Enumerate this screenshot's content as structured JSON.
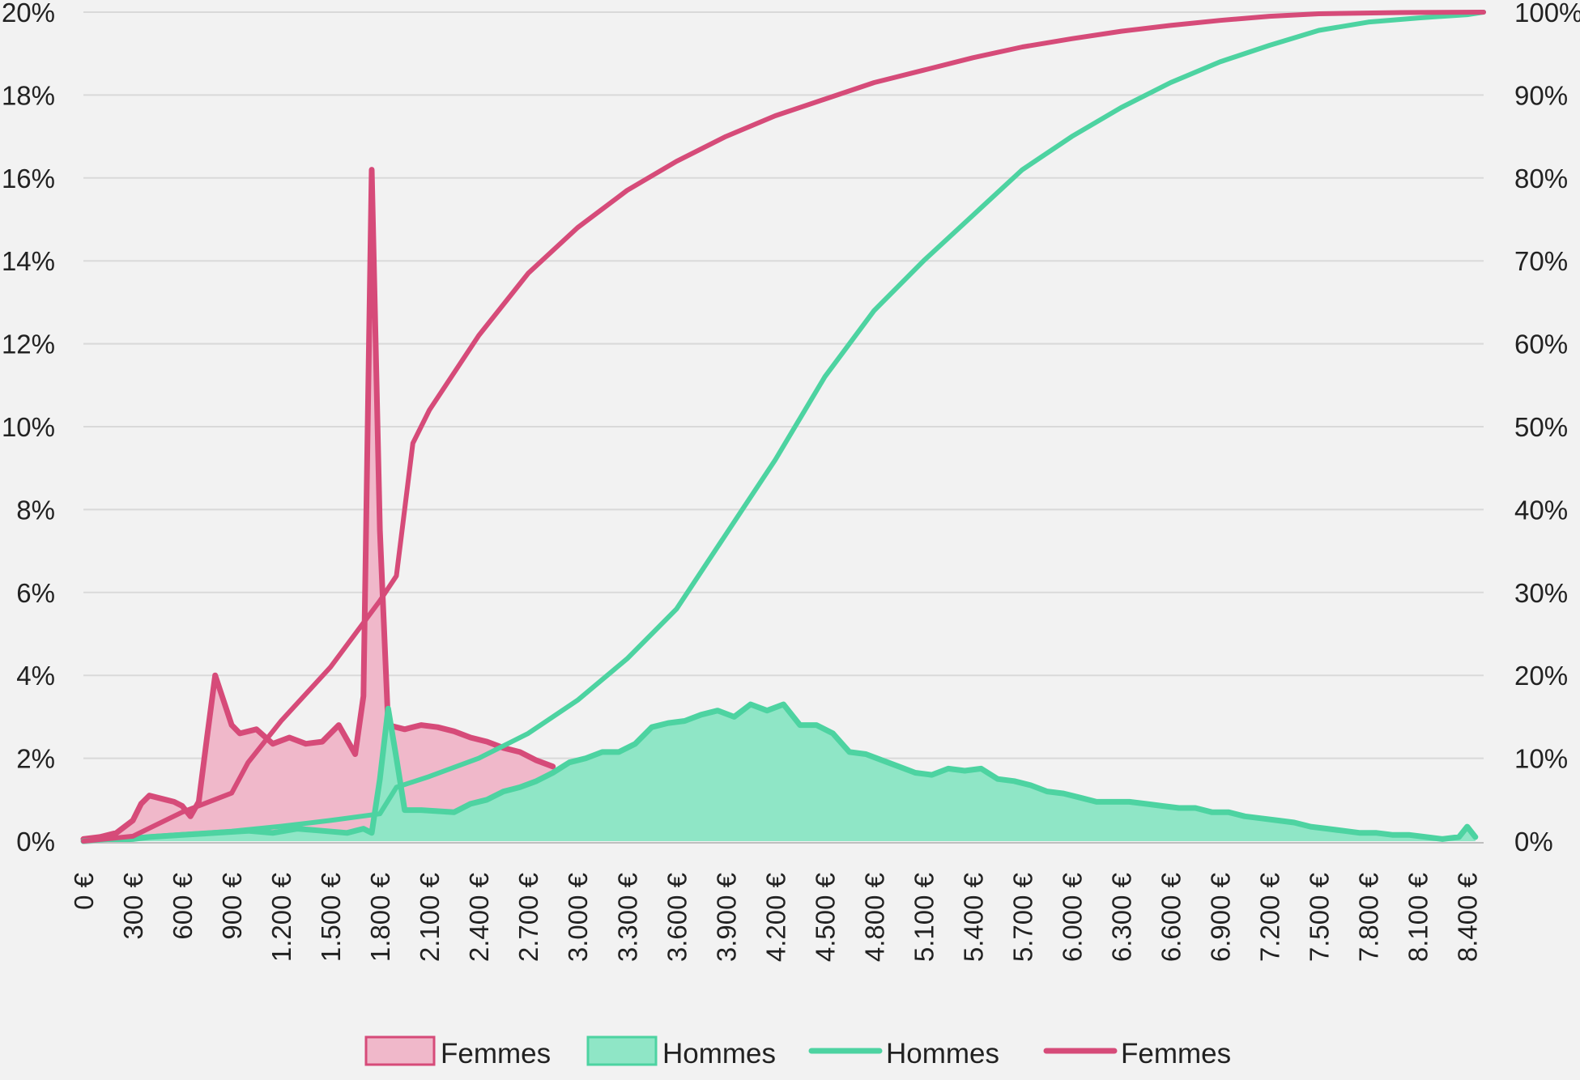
{
  "chart_data": {
    "type": "area",
    "title": "",
    "xlabel": "",
    "ylabel": "",
    "y2label": "",
    "grid": true,
    "legend_position": "bottom",
    "x_unit": "€",
    "x_range": [
      0,
      8500
    ],
    "y_left": {
      "range": [
        0,
        20
      ],
      "ticks": [
        "0%",
        "2%",
        "4%",
        "6%",
        "8%",
        "10%",
        "12%",
        "14%",
        "16%",
        "18%",
        "20%"
      ]
    },
    "y_right": {
      "range": [
        0,
        100
      ],
      "ticks": [
        "0%",
        "10%",
        "20%",
        "30%",
        "40%",
        "50%",
        "60%",
        "70%",
        "80%",
        "90%",
        "100%"
      ]
    },
    "x_tick_labels": [
      "0 €",
      "300 €",
      "600 €",
      "900 €",
      "1.200 €",
      "1.500 €",
      "1.800 €",
      "2.100 €",
      "2.400 €",
      "2.700 €",
      "3.000 €",
      "3.300 €",
      "3.600 €",
      "3.900 €",
      "4.200 €",
      "4.500 €",
      "4.800 €",
      "5.100 €",
      "5.400 €",
      "5.700 €",
      "6.000 €",
      "6.300 €",
      "6.600 €",
      "6.900 €",
      "7.200 €",
      "7.500 €",
      "7.800 €",
      "8.100 €",
      "8.400 €"
    ],
    "colors": {
      "femmes_line": "#d64b79",
      "femmes_fill": "#f0b8ca",
      "hommes_line": "#4dd3a1",
      "hommes_fill": "#8fe6c6"
    },
    "series": [
      {
        "name": "Femmes",
        "kind": "area",
        "axis": "left",
        "points": [
          [
            0,
            0.05
          ],
          [
            100,
            0.1
          ],
          [
            200,
            0.2
          ],
          [
            300,
            0.5
          ],
          [
            350,
            0.9
          ],
          [
            400,
            1.1
          ],
          [
            500,
            1.0
          ],
          [
            550,
            0.95
          ],
          [
            600,
            0.85
          ],
          [
            650,
            0.6
          ],
          [
            700,
            0.95
          ],
          [
            750,
            2.5
          ],
          [
            800,
            4.0
          ],
          [
            900,
            2.8
          ],
          [
            950,
            2.6
          ],
          [
            1050,
            2.7
          ],
          [
            1150,
            2.35
          ],
          [
            1250,
            2.5
          ],
          [
            1350,
            2.35
          ],
          [
            1450,
            2.4
          ],
          [
            1550,
            2.8
          ],
          [
            1650,
            2.1
          ],
          [
            1700,
            3.5
          ],
          [
            1750,
            16.2
          ],
          [
            1800,
            7.5
          ],
          [
            1850,
            2.8
          ],
          [
            1950,
            2.7
          ],
          [
            2050,
            2.8
          ],
          [
            2150,
            2.75
          ],
          [
            2250,
            2.65
          ],
          [
            2350,
            2.5
          ],
          [
            2450,
            2.4
          ],
          [
            2550,
            2.25
          ],
          [
            2650,
            2.15
          ],
          [
            2750,
            1.95
          ],
          [
            2850,
            1.8
          ]
        ]
      },
      {
        "name": "Hommes",
        "kind": "area",
        "axis": "left",
        "points": [
          [
            0,
            0
          ],
          [
            300,
            0.05
          ],
          [
            400,
            0.1
          ],
          [
            600,
            0.15
          ],
          [
            800,
            0.2
          ],
          [
            1000,
            0.25
          ],
          [
            1150,
            0.2
          ],
          [
            1300,
            0.3
          ],
          [
            1450,
            0.25
          ],
          [
            1600,
            0.2
          ],
          [
            1700,
            0.3
          ],
          [
            1750,
            0.2
          ],
          [
            1800,
            1.5
          ],
          [
            1850,
            3.2
          ],
          [
            1900,
            2.0
          ],
          [
            1950,
            0.75
          ],
          [
            2050,
            0.75
          ],
          [
            2250,
            0.7
          ],
          [
            2350,
            0.9
          ],
          [
            2450,
            1.0
          ],
          [
            2550,
            1.2
          ],
          [
            2650,
            1.3
          ],
          [
            2750,
            1.45
          ],
          [
            2850,
            1.65
          ],
          [
            2950,
            1.9
          ],
          [
            3050,
            2.0
          ],
          [
            3150,
            2.15
          ],
          [
            3250,
            2.15
          ],
          [
            3350,
            2.35
          ],
          [
            3450,
            2.75
          ],
          [
            3550,
            2.85
          ],
          [
            3650,
            2.9
          ],
          [
            3750,
            3.05
          ],
          [
            3850,
            3.15
          ],
          [
            3950,
            3.0
          ],
          [
            4050,
            3.3
          ],
          [
            4150,
            3.15
          ],
          [
            4250,
            3.3
          ],
          [
            4350,
            2.8
          ],
          [
            4450,
            2.8
          ],
          [
            4550,
            2.6
          ],
          [
            4650,
            2.15
          ],
          [
            4750,
            2.1
          ],
          [
            4850,
            1.95
          ],
          [
            4950,
            1.8
          ],
          [
            5050,
            1.65
          ],
          [
            5150,
            1.6
          ],
          [
            5250,
            1.75
          ],
          [
            5350,
            1.7
          ],
          [
            5450,
            1.75
          ],
          [
            5550,
            1.5
          ],
          [
            5650,
            1.45
          ],
          [
            5750,
            1.35
          ],
          [
            5850,
            1.2
          ],
          [
            5950,
            1.15
          ],
          [
            6050,
            1.05
          ],
          [
            6150,
            0.95
          ],
          [
            6250,
            0.95
          ],
          [
            6350,
            0.95
          ],
          [
            6450,
            0.9
          ],
          [
            6550,
            0.85
          ],
          [
            6650,
            0.8
          ],
          [
            6750,
            0.8
          ],
          [
            6850,
            0.7
          ],
          [
            6950,
            0.7
          ],
          [
            7050,
            0.6
          ],
          [
            7150,
            0.55
          ],
          [
            7250,
            0.5
          ],
          [
            7350,
            0.45
          ],
          [
            7450,
            0.35
          ],
          [
            7550,
            0.3
          ],
          [
            7650,
            0.25
          ],
          [
            7750,
            0.2
          ],
          [
            7850,
            0.2
          ],
          [
            7950,
            0.15
          ],
          [
            8050,
            0.15
          ],
          [
            8150,
            0.1
          ],
          [
            8250,
            0.05
          ],
          [
            8350,
            0.1
          ],
          [
            8400,
            0.35
          ],
          [
            8450,
            0.1
          ]
        ]
      },
      {
        "name": "Hommes",
        "kind": "line",
        "axis": "right",
        "points": [
          [
            0,
            0
          ],
          [
            300,
            0.4
          ],
          [
            600,
            0.8
          ],
          [
            900,
            1.2
          ],
          [
            1200,
            1.8
          ],
          [
            1500,
            2.5
          ],
          [
            1800,
            3.3
          ],
          [
            1900,
            6.5
          ],
          [
            2100,
            7.8
          ],
          [
            2400,
            10
          ],
          [
            2700,
            13
          ],
          [
            3000,
            17
          ],
          [
            3300,
            22
          ],
          [
            3600,
            28
          ],
          [
            3900,
            37
          ],
          [
            4200,
            46
          ],
          [
            4500,
            56
          ],
          [
            4800,
            64
          ],
          [
            5100,
            70
          ],
          [
            5400,
            75.5
          ],
          [
            5700,
            81
          ],
          [
            6000,
            85
          ],
          [
            6300,
            88.5
          ],
          [
            6600,
            91.5
          ],
          [
            6900,
            94
          ],
          [
            7200,
            96
          ],
          [
            7500,
            97.8
          ],
          [
            7800,
            98.8
          ],
          [
            8100,
            99.3
          ],
          [
            8400,
            99.7
          ],
          [
            8500,
            100
          ]
        ]
      },
      {
        "name": "Femmes",
        "kind": "line",
        "axis": "right",
        "points": [
          [
            0,
            0
          ],
          [
            300,
            0.6
          ],
          [
            600,
            3.5
          ],
          [
            900,
            5.8
          ],
          [
            1000,
            9.5
          ],
          [
            1200,
            14.5
          ],
          [
            1500,
            21
          ],
          [
            1800,
            29
          ],
          [
            1900,
            32
          ],
          [
            2000,
            48
          ],
          [
            2100,
            52
          ],
          [
            2400,
            61
          ],
          [
            2700,
            68.5
          ],
          [
            3000,
            74
          ],
          [
            3300,
            78.5
          ],
          [
            3600,
            82
          ],
          [
            3900,
            85
          ],
          [
            4200,
            87.5
          ],
          [
            4500,
            89.5
          ],
          [
            4800,
            91.5
          ],
          [
            5100,
            93
          ],
          [
            5400,
            94.5
          ],
          [
            5700,
            95.8
          ],
          [
            6000,
            96.8
          ],
          [
            6300,
            97.7
          ],
          [
            6600,
            98.4
          ],
          [
            6900,
            99
          ],
          [
            7200,
            99.5
          ],
          [
            7500,
            99.8
          ],
          [
            8000,
            99.95
          ],
          [
            8500,
            100
          ]
        ]
      }
    ],
    "legend": [
      {
        "label": "Femmes",
        "symbol": "area",
        "color": "femmes"
      },
      {
        "label": "Hommes",
        "symbol": "area",
        "color": "hommes"
      },
      {
        "label": "Hommes",
        "symbol": "line",
        "color": "hommes"
      },
      {
        "label": "Femmes",
        "symbol": "line",
        "color": "femmes"
      }
    ]
  }
}
